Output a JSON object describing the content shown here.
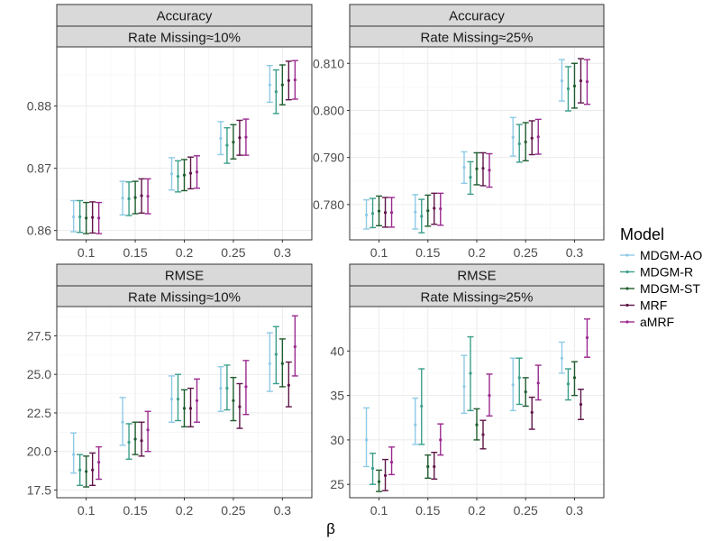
{
  "chart_data": {
    "type": "errorbar",
    "xlabel": "β",
    "legend": {
      "title": "Model",
      "position": "right",
      "entries": [
        {
          "name": "MDGM-AO",
          "color": "#8ecae6"
        },
        {
          "name": "MDGM-R",
          "color": "#3a9e8a"
        },
        {
          "name": "MDGM-ST",
          "color": "#1f5c2e"
        },
        {
          "name": "MRF",
          "color": "#5e1548"
        },
        {
          "name": "aMRF",
          "color": "#9b2a8f"
        }
      ]
    },
    "x_categories": [
      "0.1",
      "0.15",
      "0.2",
      "0.25",
      "0.3"
    ],
    "panels": [
      {
        "strip_top": "Accuracy",
        "strip_bottom": "Rate Missing≈10%",
        "ylim": [
          0.8585,
          0.8895
        ],
        "yticks": [
          0.86,
          0.87,
          0.88
        ],
        "ytick_labels": [
          "0.86",
          "0.87",
          "0.88"
        ],
        "series": [
          {
            "name": "MDGM-AO",
            "mean": [
              0.8622,
              0.8652,
              0.8691,
              0.8748,
              0.8834
            ],
            "lower": [
              0.8598,
              0.8625,
              0.8665,
              0.8722,
              0.8806
            ],
            "upper": [
              0.8648,
              0.8679,
              0.8717,
              0.8775,
              0.8865
            ]
          },
          {
            "name": "MDGM-R",
            "mean": [
              0.8622,
              0.8651,
              0.8687,
              0.8737,
              0.8823
            ],
            "lower": [
              0.8597,
              0.8624,
              0.8662,
              0.8708,
              0.8788
            ],
            "upper": [
              0.8648,
              0.8678,
              0.8712,
              0.8765,
              0.8858
            ]
          },
          {
            "name": "MDGM-ST",
            "mean": [
              0.862,
              0.8653,
              0.8689,
              0.8742,
              0.8834
            ],
            "lower": [
              0.8595,
              0.8627,
              0.8664,
              0.8715,
              0.8802
            ],
            "upper": [
              0.8645,
              0.8679,
              0.8714,
              0.877,
              0.8866
            ]
          },
          {
            "name": "MRF",
            "mean": [
              0.8621,
              0.8656,
              0.8692,
              0.8749,
              0.8841
            ],
            "lower": [
              0.8596,
              0.8628,
              0.8667,
              0.8721,
              0.881
            ],
            "upper": [
              0.8646,
              0.8683,
              0.8718,
              0.8777,
              0.8872
            ]
          },
          {
            "name": "aMRF",
            "mean": [
              0.862,
              0.8655,
              0.8694,
              0.875,
              0.8842
            ],
            "lower": [
              0.8595,
              0.8627,
              0.8668,
              0.8721,
              0.8811
            ],
            "upper": [
              0.8645,
              0.8683,
              0.872,
              0.8779,
              0.8873
            ]
          }
        ]
      },
      {
        "strip_top": "Accuracy",
        "strip_bottom": "Rate Missing≈25%",
        "ylim": [
          0.7725,
          0.8135
        ],
        "yticks": [
          0.78,
          0.79,
          0.8,
          0.81
        ],
        "ytick_labels": [
          "0.780",
          "0.790",
          "0.800",
          "0.810"
        ],
        "series": [
          {
            "name": "MDGM-AO",
            "mean": [
              0.7778,
              0.7784,
              0.7879,
              0.7943,
              0.8063
            ],
            "lower": [
              0.7748,
              0.7748,
              0.7845,
              0.7903,
              0.802
            ],
            "upper": [
              0.781,
              0.7821,
              0.7912,
              0.7985,
              0.8108
            ]
          },
          {
            "name": "MDGM-R",
            "mean": [
              0.7781,
              0.7775,
              0.7858,
              0.7929,
              0.8046
            ],
            "lower": [
              0.7751,
              0.774,
              0.7822,
              0.789,
              0.7999
            ],
            "upper": [
              0.7813,
              0.7811,
              0.7891,
              0.797,
              0.8093
            ]
          },
          {
            "name": "MDGM-ST",
            "mean": [
              0.7786,
              0.7787,
              0.7876,
              0.7933,
              0.8052
            ],
            "lower": [
              0.7755,
              0.7754,
              0.7842,
              0.7893,
              0.8005
            ],
            "upper": [
              0.7818,
              0.782,
              0.791,
              0.7974,
              0.81
            ]
          },
          {
            "name": "MRF",
            "mean": [
              0.7783,
              0.7792,
              0.7877,
              0.7941,
              0.8063
            ],
            "lower": [
              0.7752,
              0.7758,
              0.784,
              0.7906,
              0.8016
            ],
            "upper": [
              0.7815,
              0.7824,
              0.791,
              0.7978,
              0.811
            ]
          },
          {
            "name": "aMRF",
            "mean": [
              0.7783,
              0.7791,
              0.7873,
              0.7944,
              0.8061
            ],
            "lower": [
              0.7752,
              0.7756,
              0.7837,
              0.7907,
              0.8013
            ],
            "upper": [
              0.7815,
              0.7824,
              0.7908,
              0.7981,
              0.8108
            ]
          }
        ]
      },
      {
        "strip_top": "RMSE",
        "strip_bottom": "Rate Missing≈10%",
        "ylim": [
          17.0,
          29.4
        ],
        "yticks": [
          17.5,
          20.0,
          22.5,
          25.0,
          27.5
        ],
        "ytick_labels": [
          "17.5",
          "20.0",
          "22.5",
          "25.0",
          "27.5"
        ],
        "series": [
          {
            "name": "MDGM-AO",
            "mean": [
              19.8,
              21.9,
              23.4,
              24.1,
              25.7
            ],
            "lower": [
              18.6,
              20.4,
              21.9,
              22.6,
              23.9
            ],
            "upper": [
              21.2,
              23.5,
              24.9,
              25.5,
              27.7
            ]
          },
          {
            "name": "MDGM-R",
            "mean": [
              18.8,
              20.6,
              23.4,
              24.1,
              26.3
            ],
            "lower": [
              17.8,
              19.5,
              22.0,
              22.7,
              24.4
            ],
            "upper": [
              19.8,
              21.8,
              25.0,
              25.6,
              28.1
            ]
          },
          {
            "name": "MDGM-ST",
            "mean": [
              18.7,
              20.8,
              22.8,
              23.3,
              25.7
            ],
            "lower": [
              17.7,
              19.8,
              21.6,
              22.0,
              24.2
            ],
            "upper": [
              19.7,
              21.9,
              24.0,
              24.8,
              27.3
            ]
          },
          {
            "name": "MRF",
            "mean": [
              18.8,
              20.7,
              22.8,
              22.9,
              24.3
            ],
            "lower": [
              17.8,
              19.7,
              21.6,
              21.5,
              22.9
            ],
            "upper": [
              19.9,
              21.9,
              24.1,
              24.4,
              25.8
            ]
          },
          {
            "name": "aMRF",
            "mean": [
              19.3,
              21.4,
              23.3,
              24.2,
              26.8
            ],
            "lower": [
              18.2,
              20.0,
              21.9,
              22.4,
              24.9
            ],
            "upper": [
              20.3,
              22.6,
              24.7,
              25.9,
              28.8
            ]
          }
        ]
      },
      {
        "strip_top": "RMSE",
        "strip_bottom": "Rate Missing≈25%",
        "ylim": [
          23.5,
          45.0
        ],
        "yticks": [
          25,
          30,
          35,
          40
        ],
        "ytick_labels": [
          "25",
          "30",
          "35",
          "40"
        ],
        "series": [
          {
            "name": "MDGM-AO",
            "mean": [
              30.0,
              31.7,
              36.0,
              36.2,
              39.2
            ],
            "lower": [
              27.0,
              29.5,
              33.0,
              33.3,
              37.5
            ],
            "upper": [
              33.6,
              34.7,
              39.5,
              39.2,
              41.0
            ]
          },
          {
            "name": "MDGM-R",
            "mean": [
              26.8,
              33.8,
              37.5,
              37.0,
              36.3
            ],
            "lower": [
              25.0,
              29.5,
              33.3,
              34.0,
              34.5
            ],
            "upper": [
              28.5,
              38.0,
              41.6,
              39.2,
              38.0
            ]
          },
          {
            "name": "MDGM-ST",
            "mean": [
              25.3,
              27.0,
              31.7,
              35.4,
              37.0
            ],
            "lower": [
              24.2,
              25.7,
              30.0,
              33.8,
              35.0
            ],
            "upper": [
              26.6,
              28.3,
              33.5,
              37.0,
              38.8
            ]
          },
          {
            "name": "MRF",
            "mean": [
              26.0,
              27.0,
              30.6,
              33.1,
              34.0
            ],
            "lower": [
              24.3,
              25.6,
              29.0,
              31.2,
              32.3
            ],
            "upper": [
              27.8,
              28.6,
              32.2,
              34.8,
              35.7
            ]
          },
          {
            "name": "aMRF",
            "mean": [
              27.5,
              30.0,
              35.0,
              36.4,
              41.5
            ],
            "lower": [
              26.1,
              28.3,
              32.7,
              34.5,
              39.3
            ],
            "upper": [
              29.2,
              31.8,
              37.4,
              38.4,
              43.6
            ]
          }
        ]
      }
    ]
  }
}
